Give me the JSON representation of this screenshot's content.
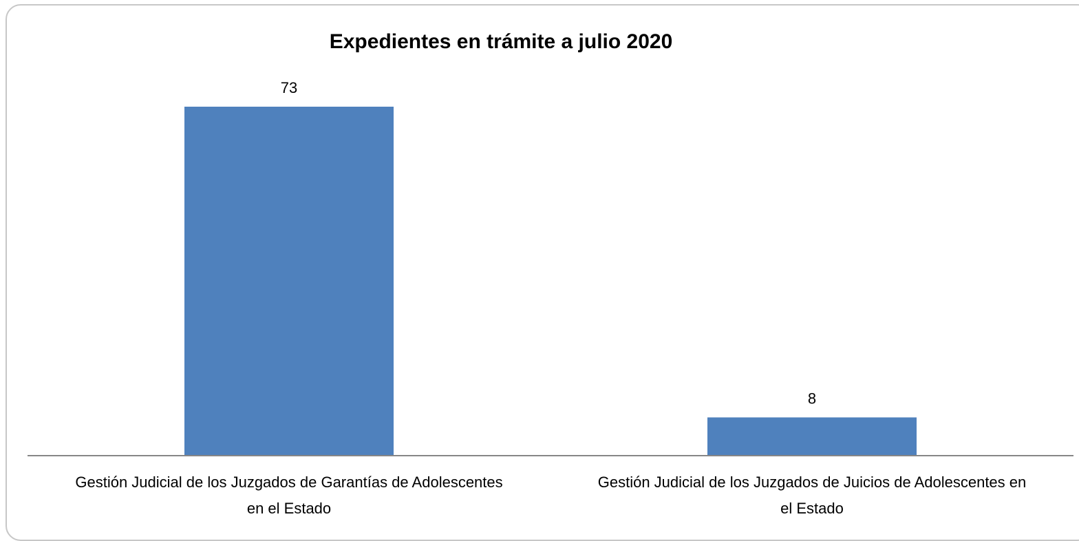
{
  "chart_data": {
    "type": "bar",
    "title": "Expedientes en trámite a julio 2020",
    "categories": [
      [
        "Gestión Judicial de los Juzgados de Garantías de Adolescentes",
        "en el Estado"
      ],
      [
        "Gestión Judicial de los Juzgados de Juicios de Adolescentes en",
        "el Estado"
      ]
    ],
    "values": [
      73,
      8
    ],
    "data_labels": [
      "73",
      "8"
    ],
    "ylim": [
      0,
      73
    ],
    "grid": false,
    "legend": "none",
    "bar_color": "#4F81BD",
    "axis_color": "#868686"
  }
}
